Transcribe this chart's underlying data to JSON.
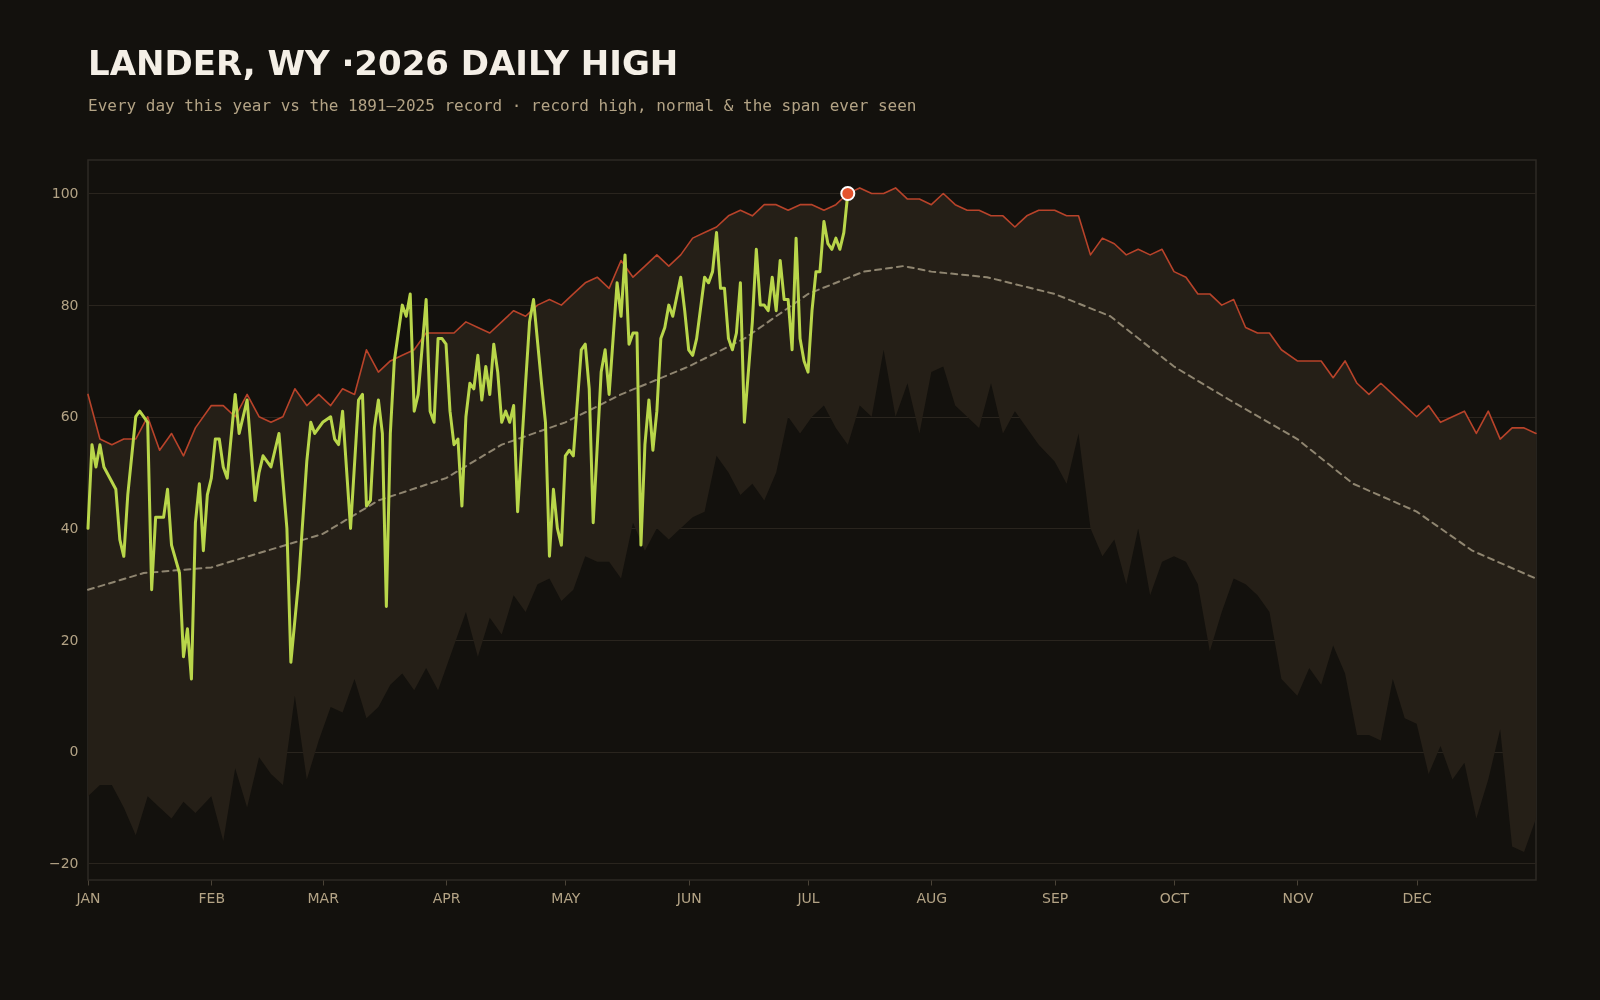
{
  "chart_data": {
    "type": "line",
    "title": "LANDER, WY ·2026 DAILY HIGH",
    "subtitle": "Every day this year vs the 1891–2025 record · record high, normal & the span ever seen",
    "xlim": [
      "2026-01-01",
      "2026-12-31"
    ],
    "ylim": [
      -23,
      106
    ],
    "xticks": [
      {
        "value": "2026-01-01",
        "label": "JAN"
      },
      {
        "value": "2026-02-01",
        "label": "FEB"
      },
      {
        "value": "2026-03-01",
        "label": "MAR"
      },
      {
        "value": "2026-04-01",
        "label": "APR"
      },
      {
        "value": "2026-05-01",
        "label": "MAY"
      },
      {
        "value": "2026-06-01",
        "label": "JUN"
      },
      {
        "value": "2026-07-01",
        "label": "JUL"
      },
      {
        "value": "2026-08-01",
        "label": "AUG"
      },
      {
        "value": "2026-09-01",
        "label": "SEP"
      },
      {
        "value": "2026-10-01",
        "label": "OCT"
      },
      {
        "value": "2026-11-01",
        "label": "NOV"
      },
      {
        "value": "2026-12-01",
        "label": "DEC"
      }
    ],
    "yticks": [
      -20,
      0,
      20,
      40,
      60,
      80,
      100
    ],
    "grid": "y",
    "series": [
      {
        "color": "#b8432a",
        "x": [
          "2026-01-01",
          "2026-01-04",
          "2026-01-07",
          "2026-01-10",
          "2026-01-13",
          "2026-01-16",
          "2026-01-19",
          "2026-01-22",
          "2026-01-25",
          "2026-01-28",
          "2026-02-01",
          "2026-02-04",
          "2026-02-07",
          "2026-02-10",
          "2026-02-13",
          "2026-02-16",
          "2026-02-19",
          "2026-02-22",
          "2026-02-25",
          "2026-02-28",
          "2026-03-03",
          "2026-03-06",
          "2026-03-09",
          "2026-03-12",
          "2026-03-15",
          "2026-03-18",
          "2026-03-21",
          "2026-03-24",
          "2026-03-27",
          "2026-03-30",
          "2026-04-03",
          "2026-04-06",
          "2026-04-09",
          "2026-04-12",
          "2026-04-15",
          "2026-04-18",
          "2026-04-21",
          "2026-04-24",
          "2026-04-27",
          "2026-04-30",
          "2026-05-03",
          "2026-05-06",
          "2026-05-09",
          "2026-05-12",
          "2026-05-15",
          "2026-05-18",
          "2026-05-21",
          "2026-05-24",
          "2026-05-27",
          "2026-05-30",
          "2026-06-02",
          "2026-06-05",
          "2026-06-08",
          "2026-06-11",
          "2026-06-14",
          "2026-06-17",
          "2026-06-20",
          "2026-06-23",
          "2026-06-26",
          "2026-06-29",
          "2026-07-02",
          "2026-07-05",
          "2026-07-08",
          "2026-07-11",
          "2026-07-14",
          "2026-07-17",
          "2026-07-20",
          "2026-07-23",
          "2026-07-26",
          "2026-07-29",
          "2026-08-01",
          "2026-08-04",
          "2026-08-07",
          "2026-08-10",
          "2026-08-13",
          "2026-08-16",
          "2026-08-19",
          "2026-08-22",
          "2026-08-25",
          "2026-08-28",
          "2026-09-01",
          "2026-09-04",
          "2026-09-07",
          "2026-09-10",
          "2026-09-13",
          "2026-09-16",
          "2026-09-19",
          "2026-09-22",
          "2026-09-25",
          "2026-09-28",
          "2026-10-01",
          "2026-10-04",
          "2026-10-07",
          "2026-10-10",
          "2026-10-13",
          "2026-10-16",
          "2026-10-19",
          "2026-10-22",
          "2026-10-25",
          "2026-10-28",
          "2026-11-01",
          "2026-11-04",
          "2026-11-07",
          "2026-11-10",
          "2026-11-13",
          "2026-11-16",
          "2026-11-19",
          "2026-11-22",
          "2026-11-25",
          "2026-11-28",
          "2026-12-01",
          "2026-12-04",
          "2026-12-07",
          "2026-12-10",
          "2026-12-13",
          "2026-12-16",
          "2026-12-19",
          "2026-12-22",
          "2026-12-25",
          "2026-12-28",
          "2026-12-31"
        ],
        "values": [
          64,
          56,
          55,
          56,
          56,
          60,
          54,
          57,
          53,
          58,
          62,
          62,
          60,
          64,
          60,
          59,
          60,
          65,
          62,
          64,
          62,
          65,
          64,
          72,
          68,
          70,
          71,
          72,
          75,
          75,
          75,
          77,
          76,
          75,
          77,
          79,
          78,
          80,
          81,
          80,
          82,
          84,
          85,
          83,
          88,
          85,
          87,
          89,
          87,
          89,
          92,
          93,
          94,
          96,
          97,
          96,
          98,
          98,
          97,
          98,
          98,
          97,
          98,
          100,
          101,
          100,
          100,
          101,
          99,
          99,
          98,
          100,
          98,
          97,
          97,
          96,
          96,
          94,
          96,
          97,
          97,
          96,
          96,
          89,
          92,
          91,
          89,
          90,
          89,
          90,
          86,
          85,
          82,
          82,
          80,
          81,
          76,
          75,
          75,
          72,
          70,
          70,
          70,
          67,
          70,
          66,
          64,
          66,
          64,
          62,
          60,
          62,
          59,
          60,
          61,
          57,
          61,
          56,
          58,
          58,
          57
        ],
        "lower": [
          -8,
          -6,
          -6,
          -10,
          -15,
          -8,
          -10,
          -12,
          -9,
          -11,
          -8,
          -16,
          -3,
          -10,
          -1,
          -4,
          -6,
          10,
          -5,
          2,
          8,
          7,
          13,
          6,
          8,
          12,
          14,
          11,
          15,
          11,
          19,
          25,
          17,
          24,
          21,
          28,
          25,
          30,
          31,
          27,
          29,
          35,
          34,
          34,
          31,
          41,
          36,
          40,
          38,
          40,
          42,
          43,
          53,
          50,
          46,
          48,
          45,
          50,
          60,
          57,
          60,
          62,
          58,
          55,
          62,
          60,
          72,
          60,
          66,
          57,
          68,
          69,
          62,
          60,
          58,
          66,
          57,
          61,
          58,
          55,
          52,
          48,
          57,
          40,
          35,
          38,
          30,
          40,
          28,
          34,
          35,
          34,
          30,
          18,
          25,
          31,
          30,
          28,
          25,
          13,
          10,
          15,
          12,
          19,
          14,
          3,
          3,
          2,
          13,
          6,
          5,
          -4,
          1,
          -5,
          -2,
          -12,
          -5,
          4,
          -17,
          -18,
          -12
        ],
        "upper": [
          64,
          56,
          55,
          56,
          56,
          60,
          54,
          57,
          53,
          58,
          62,
          62,
          60,
          64,
          60,
          59,
          60,
          65,
          62,
          64,
          62,
          65,
          64,
          72,
          68,
          70,
          71,
          72,
          75,
          75,
          75,
          77,
          76,
          75,
          77,
          79,
          78,
          80,
          81,
          80,
          82,
          84,
          85,
          83,
          88,
          85,
          87,
          89,
          87,
          89,
          92,
          93,
          94,
          96,
          97,
          96,
          98,
          98,
          97,
          98,
          98,
          97,
          98,
          100,
          101,
          100,
          100,
          101,
          99,
          99,
          98,
          100,
          98,
          97,
          97,
          96,
          96,
          94,
          96,
          97,
          97,
          96,
          96,
          89,
          92,
          91,
          89,
          90,
          89,
          90,
          86,
          85,
          82,
          82,
          80,
          81,
          76,
          75,
          75,
          72,
          70,
          70,
          70,
          67,
          70,
          66,
          64,
          66,
          64,
          62,
          60,
          62,
          59,
          60,
          61,
          57,
          61,
          56,
          58,
          58,
          57
        ]
      },
      {
        "color": "#8f8570",
        "line_style": "dashed",
        "x": [
          "2026-01-01",
          "2026-01-15",
          "2026-02-01",
          "2026-02-15",
          "2026-03-01",
          "2026-03-15",
          "2026-04-01",
          "2026-04-15",
          "2026-05-01",
          "2026-05-15",
          "2026-06-01",
          "2026-06-15",
          "2026-07-01",
          "2026-07-15",
          "2026-07-25",
          "2026-08-01",
          "2026-08-15",
          "2026-09-01",
          "2026-09-15",
          "2026-10-01",
          "2026-10-15",
          "2026-11-01",
          "2026-11-15",
          "2026-12-01",
          "2026-12-15",
          "2026-12-31"
        ],
        "values": [
          29,
          32,
          33,
          36,
          39,
          45,
          49,
          55,
          59,
          64,
          69,
          74,
          82,
          86,
          87,
          86,
          85,
          82,
          78,
          69,
          63,
          56,
          48,
          43,
          36,
          31
        ]
      },
      {
        "color": "#b9d64a",
        "x": [
          "2026-01-01",
          "2026-01-02",
          "2026-01-03",
          "2026-01-04",
          "2026-01-05",
          "2026-01-08",
          "2026-01-09",
          "2026-01-10",
          "2026-01-11",
          "2026-01-13",
          "2026-01-14",
          "2026-01-16",
          "2026-01-17",
          "2026-01-18",
          "2026-01-20",
          "2026-01-21",
          "2026-01-22",
          "2026-01-24",
          "2026-01-25",
          "2026-01-26",
          "2026-01-27",
          "2026-01-28",
          "2026-01-29",
          "2026-01-30",
          "2026-01-31",
          "2026-02-01",
          "2026-02-02",
          "2026-02-03",
          "2026-02-04",
          "2026-02-05",
          "2026-02-07",
          "2026-02-08",
          "2026-02-10",
          "2026-02-12",
          "2026-02-13",
          "2026-02-14",
          "2026-02-16",
          "2026-02-18",
          "2026-02-20",
          "2026-02-21",
          "2026-02-23",
          "2026-02-25",
          "2026-02-26",
          "2026-02-27",
          "2026-03-01",
          "2026-03-03",
          "2026-03-04",
          "2026-03-05",
          "2026-03-06",
          "2026-03-08",
          "2026-03-10",
          "2026-03-11",
          "2026-03-12",
          "2026-03-13",
          "2026-03-14",
          "2026-03-15",
          "2026-03-16",
          "2026-03-17",
          "2026-03-18",
          "2026-03-19",
          "2026-03-21",
          "2026-03-22",
          "2026-03-23",
          "2026-03-24",
          "2026-03-25",
          "2026-03-27",
          "2026-03-28",
          "2026-03-29",
          "2026-03-30",
          "2026-03-31",
          "2026-04-01",
          "2026-04-02",
          "2026-04-03",
          "2026-04-04",
          "2026-04-05",
          "2026-04-06",
          "2026-04-07",
          "2026-04-08",
          "2026-04-09",
          "2026-04-10",
          "2026-04-11",
          "2026-04-12",
          "2026-04-13",
          "2026-04-14",
          "2026-04-15",
          "2026-04-16",
          "2026-04-17",
          "2026-04-18",
          "2026-04-19",
          "2026-04-21",
          "2026-04-22",
          "2026-04-23",
          "2026-04-25",
          "2026-04-26",
          "2026-04-27",
          "2026-04-28",
          "2026-04-29",
          "2026-04-30",
          "2026-05-01",
          "2026-05-02",
          "2026-05-03",
          "2026-05-05",
          "2026-05-06",
          "2026-05-07",
          "2026-05-08",
          "2026-05-10",
          "2026-05-11",
          "2026-05-12",
          "2026-05-14",
          "2026-05-15",
          "2026-05-16",
          "2026-05-17",
          "2026-05-18",
          "2026-05-19",
          "2026-05-20",
          "2026-05-21",
          "2026-05-22",
          "2026-05-23",
          "2026-05-24",
          "2026-05-25",
          "2026-05-26",
          "2026-05-27",
          "2026-05-28",
          "2026-05-30",
          "2026-05-31",
          "2026-06-01",
          "2026-06-02",
          "2026-06-03",
          "2026-06-05",
          "2026-06-06",
          "2026-06-07",
          "2026-06-08",
          "2026-06-09",
          "2026-06-10",
          "2026-06-11",
          "2026-06-12",
          "2026-06-13",
          "2026-06-14",
          "2026-06-15",
          "2026-06-17",
          "2026-06-18",
          "2026-06-19",
          "2026-06-20",
          "2026-06-21",
          "2026-06-22",
          "2026-06-23",
          "2026-06-24",
          "2026-06-25",
          "2026-06-26",
          "2026-06-27",
          "2026-06-28",
          "2026-06-29",
          "2026-06-30",
          "2026-07-01",
          "2026-07-02",
          "2026-07-03",
          "2026-07-04",
          "2026-07-05",
          "2026-07-06",
          "2026-07-07",
          "2026-07-08",
          "2026-07-09",
          "2026-07-10",
          "2026-07-11"
        ],
        "values": [
          40,
          55,
          51,
          55,
          51,
          47,
          38,
          35,
          46,
          60,
          61,
          59,
          29,
          42,
          42,
          47,
          37,
          32,
          17,
          22,
          13,
          41,
          48,
          36,
          46,
          49,
          56,
          56,
          51,
          49,
          64,
          57,
          63,
          45,
          50,
          53,
          51,
          57,
          40,
          16,
          31,
          52,
          59,
          57,
          59,
          60,
          56,
          55,
          61,
          40,
          63,
          64,
          44,
          45,
          58,
          63,
          57,
          26,
          57,
          70,
          80,
          78,
          82,
          61,
          64,
          81,
          61,
          59,
          74,
          74,
          73,
          61,
          55,
          56,
          44,
          60,
          66,
          65,
          71,
          63,
          69,
          64,
          73,
          68,
          59,
          61,
          59,
          62,
          43,
          66,
          77,
          81,
          66,
          59,
          35,
          47,
          40,
          37,
          53,
          54,
          53,
          72,
          73,
          65,
          41,
          68,
          72,
          64,
          84,
          78,
          89,
          73,
          75,
          75,
          37,
          55,
          63,
          54,
          61,
          74,
          76,
          80,
          78,
          85,
          79,
          72,
          71,
          74,
          85,
          84,
          86,
          93,
          83,
          83,
          74,
          72,
          75,
          84,
          59,
          77,
          90,
          80,
          80,
          79,
          85,
          79,
          88,
          81,
          81,
          72,
          92,
          74,
          70,
          68,
          79,
          86,
          86,
          95,
          91,
          90,
          92,
          90,
          93,
          100
        ]
      },
      {
        "type": "scatter",
        "color": "#e4532d",
        "marker": "circle",
        "x": [
          "2026-07-11"
        ],
        "values": [
          100
        ]
      }
    ]
  }
}
